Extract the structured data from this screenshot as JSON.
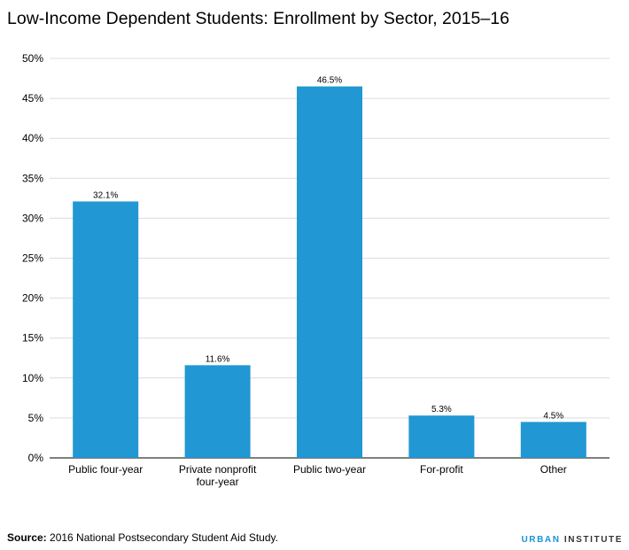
{
  "title": "Low-Income Dependent Students: Enrollment by Sector, 2015–16",
  "footer": {
    "source_label": "Source:",
    "source_text": " 2016 National Postsecondary Student Aid Study.",
    "brand_accent": "URBAN",
    "brand_rest": " INSTITUTE"
  },
  "colors": {
    "bar": "#2197d3",
    "grid": "#dcdcdc",
    "axis": "#000000"
  },
  "chart_data": {
    "type": "bar",
    "title": "Low-Income Dependent Students: Enrollment by Sector, 2015–16",
    "categories": [
      [
        "Public four-year"
      ],
      [
        "Private nonprofit",
        "four-year"
      ],
      [
        "Public two-year"
      ],
      [
        "For-profit"
      ],
      [
        "Other"
      ]
    ],
    "values": [
      32.1,
      11.6,
      46.5,
      5.3,
      4.5
    ],
    "value_labels": [
      "32.1%",
      "11.6%",
      "46.5%",
      "5.3%",
      "4.5%"
    ],
    "yticks": [
      "0%",
      "5%",
      "10%",
      "15%",
      "20%",
      "25%",
      "30%",
      "35%",
      "40%",
      "45%",
      "50%"
    ],
    "ylim": [
      0,
      50
    ],
    "grid": true,
    "legend": "none",
    "xlabel": "",
    "ylabel": ""
  }
}
